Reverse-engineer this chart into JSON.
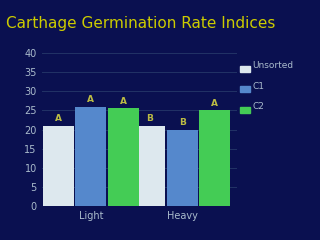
{
  "title": "Carthage Germination Rate Indices",
  "title_color": "#cccc00",
  "background_color": "#0a1050",
  "plot_bg_color": "#0a1050",
  "categories": [
    "Light",
    "Heavy"
  ],
  "series": {
    "Unsorted": [
      21,
      21
    ],
    "C1": [
      26,
      20
    ],
    "C2": [
      25.5,
      25
    ]
  },
  "bar_colors": {
    "Unsorted": "#dde8ee",
    "C1": "#5588cc",
    "C2": "#44cc55"
  },
  "labels": {
    "Light": [
      "A",
      "A",
      "A"
    ],
    "Heavy": [
      "B",
      "B",
      "A"
    ]
  },
  "ylim": [
    0,
    40
  ],
  "yticks": [
    0,
    5,
    10,
    15,
    20,
    25,
    30,
    35,
    40
  ],
  "tick_color": "#aabbcc",
  "grid_color": "#223366",
  "label_color": "#aabbcc",
  "annotation_color": "#bbbb44",
  "title_fontsize": 11,
  "axis_fontsize": 7,
  "legend_fontsize": 6.5
}
